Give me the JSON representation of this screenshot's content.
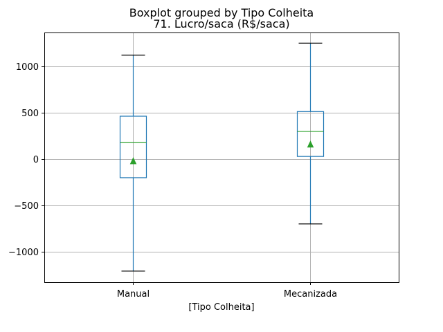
{
  "chart_data": {
    "type": "boxplot",
    "suptitle": "Boxplot grouped by Tipo Colheita",
    "title": "71. Lucro/saca (R$/saca)",
    "xlabel": "[Tipo Colheita]",
    "ylabel": "",
    "categories": [
      "Manual",
      "Mecanizada"
    ],
    "boxes": [
      {
        "category": "Manual",
        "whisker_low": -1210,
        "q1": -200,
        "median": 180,
        "q3": 465,
        "whisker_high": 1125,
        "mean": -20
      },
      {
        "category": "Mecanizada",
        "whisker_low": -700,
        "q1": 30,
        "median": 300,
        "q3": 515,
        "whisker_high": 1255,
        "mean": 160
      }
    ],
    "ylim": [
      -1330,
      1370
    ],
    "yticks": [
      -1000,
      -500,
      0,
      500,
      1000
    ],
    "ytick_labels": [
      "−1000",
      "−500",
      "0",
      "500",
      "1000"
    ],
    "grid": true,
    "colors": {
      "box": "#1f77b4",
      "median": "#2ca02c",
      "mean": "#2ca02c",
      "whisker_cap": "#000000",
      "grid": "#b0b0b0"
    }
  }
}
